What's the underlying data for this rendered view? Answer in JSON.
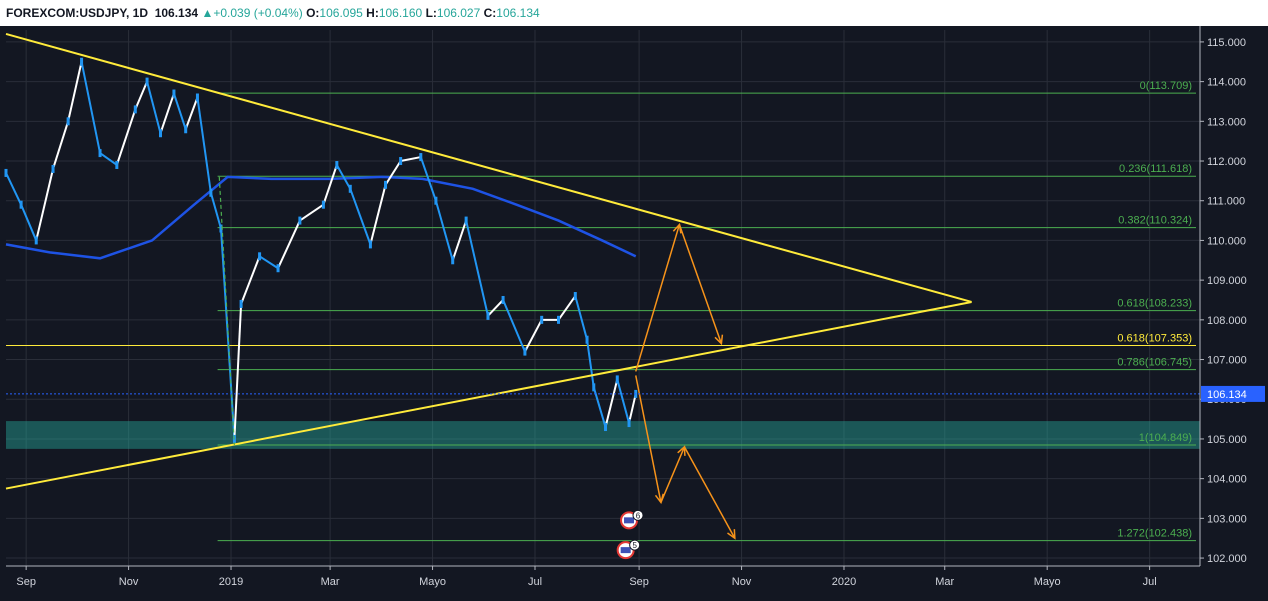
{
  "header": {
    "symbol": "FOREXCOM:USDJPY, 1D",
    "last": "106.134",
    "arrow": "▲",
    "change": "+0.039 (+0.04%)",
    "o_label": "O:",
    "o_value": "106.095",
    "h_label": "H:",
    "h_value": "106.160",
    "l_label": "L:",
    "l_value": "106.027",
    "c_label": "C:",
    "c_value": "106.134"
  },
  "chart_data": {
    "type": "line",
    "title": "",
    "xlabel": "",
    "ylabel": "",
    "ylim": [
      101.8,
      115.3
    ],
    "grid": true,
    "background": "#131722",
    "x_start": "2018-08-20",
    "x_end": "2020-07-31",
    "x_ticks": [
      {
        "label": "Sep",
        "date": "2018-09-01"
      },
      {
        "label": "Nov",
        "date": "2018-11-01"
      },
      {
        "label": "2019",
        "date": "2019-01-01"
      },
      {
        "label": "Mar",
        "date": "2019-03-01"
      },
      {
        "label": "Mayo",
        "date": "2019-05-01"
      },
      {
        "label": "Jul",
        "date": "2019-07-01"
      },
      {
        "label": "Sep",
        "date": "2019-09-01"
      },
      {
        "label": "Nov",
        "date": "2019-11-01"
      },
      {
        "label": "2020",
        "date": "2020-01-01"
      },
      {
        "label": "Mar",
        "date": "2020-03-01"
      },
      {
        "label": "Mayo",
        "date": "2020-05-01"
      },
      {
        "label": "Jul",
        "date": "2020-07-01"
      }
    ],
    "y_ticks": [
      "115.000",
      "114.000",
      "113.000",
      "112.000",
      "111.000",
      "110.000",
      "109.000",
      "108.000",
      "107.000",
      "106.000",
      "105.000",
      "104.000",
      "103.000",
      "102.000"
    ],
    "current_price": {
      "value": 106.134,
      "label": "106.134",
      "color": "#2962ff"
    },
    "price_series": {
      "name": "",
      "color_up": "#ffffff",
      "color_down": "#2196f3",
      "points": [
        {
          "date": "2018-08-20",
          "value": 111.7
        },
        {
          "date": "2018-08-29",
          "value": 110.9
        },
        {
          "date": "2018-09-07",
          "value": 110.0
        },
        {
          "date": "2018-09-17",
          "value": 111.8
        },
        {
          "date": "2018-09-26",
          "value": 113.0
        },
        {
          "date": "2018-10-04",
          "value": 114.5
        },
        {
          "date": "2018-10-15",
          "value": 112.2
        },
        {
          "date": "2018-10-25",
          "value": 111.9
        },
        {
          "date": "2018-11-05",
          "value": 113.3
        },
        {
          "date": "2018-11-12",
          "value": 114.0
        },
        {
          "date": "2018-11-20",
          "value": 112.7
        },
        {
          "date": "2018-11-28",
          "value": 113.7
        },
        {
          "date": "2018-12-05",
          "value": 112.8
        },
        {
          "date": "2018-12-12",
          "value": 113.6
        },
        {
          "date": "2018-12-20",
          "value": 111.2
        },
        {
          "date": "2018-12-26",
          "value": 110.3
        },
        {
          "date": "2019-01-03",
          "value": 105.0
        },
        {
          "date": "2019-01-07",
          "value": 108.4
        },
        {
          "date": "2019-01-18",
          "value": 109.6
        },
        {
          "date": "2019-01-29",
          "value": 109.3
        },
        {
          "date": "2019-02-11",
          "value": 110.5
        },
        {
          "date": "2019-02-25",
          "value": 110.9
        },
        {
          "date": "2019-03-05",
          "value": 111.9
        },
        {
          "date": "2019-03-13",
          "value": 111.3
        },
        {
          "date": "2019-03-25",
          "value": 109.9
        },
        {
          "date": "2019-04-03",
          "value": 111.4
        },
        {
          "date": "2019-04-12",
          "value": 112.0
        },
        {
          "date": "2019-04-24",
          "value": 112.1
        },
        {
          "date": "2019-05-03",
          "value": 111.0
        },
        {
          "date": "2019-05-13",
          "value": 109.5
        },
        {
          "date": "2019-05-21",
          "value": 110.5
        },
        {
          "date": "2019-06-03",
          "value": 108.1
        },
        {
          "date": "2019-06-12",
          "value": 108.5
        },
        {
          "date": "2019-06-25",
          "value": 107.2
        },
        {
          "date": "2019-07-05",
          "value": 108.0
        },
        {
          "date": "2019-07-15",
          "value": 108.0
        },
        {
          "date": "2019-07-25",
          "value": 108.6
        },
        {
          "date": "2019-08-01",
          "value": 107.5
        },
        {
          "date": "2019-08-05",
          "value": 106.3
        },
        {
          "date": "2019-08-12",
          "value": 105.3
        },
        {
          "date": "2019-08-19",
          "value": 106.5
        },
        {
          "date": "2019-08-26",
          "value": 105.4
        },
        {
          "date": "2019-08-30",
          "value": 106.134
        }
      ]
    },
    "moving_average": {
      "color": "#1e53e5",
      "points": [
        {
          "date": "2018-08-20",
          "value": 109.9
        },
        {
          "date": "2018-09-15",
          "value": 109.7
        },
        {
          "date": "2018-10-15",
          "value": 109.55
        },
        {
          "date": "2018-11-15",
          "value": 110.0
        },
        {
          "date": "2018-12-10",
          "value": 110.9
        },
        {
          "date": "2018-12-30",
          "value": 111.6
        },
        {
          "date": "2019-01-25",
          "value": 111.55
        },
        {
          "date": "2019-03-01",
          "value": 111.55
        },
        {
          "date": "2019-04-01",
          "value": 111.6
        },
        {
          "date": "2019-04-25",
          "value": 111.55
        },
        {
          "date": "2019-05-25",
          "value": 111.3
        },
        {
          "date": "2019-06-20",
          "value": 110.9
        },
        {
          "date": "2019-07-15",
          "value": 110.5
        },
        {
          "date": "2019-08-10",
          "value": 110.0
        },
        {
          "date": "2019-08-30",
          "value": 109.6
        }
      ]
    },
    "trendlines": [
      {
        "color": "#ffeb3b",
        "from": {
          "date": "2018-08-20",
          "value": 115.2
        },
        "to": {
          "date": "2020-03-17",
          "value": 108.45
        }
      },
      {
        "color": "#ffeb3b",
        "from": {
          "date": "2018-08-20",
          "value": 103.75
        },
        "to": {
          "date": "2020-03-17",
          "value": 108.45
        }
      },
      {
        "color": "#4caf50",
        "dashed": true,
        "from": {
          "date": "2018-12-25",
          "value": 111.6
        },
        "to": {
          "date": "2019-01-03",
          "value": 104.85
        }
      }
    ],
    "fib_levels": [
      {
        "label": "0(113.709)",
        "value": 113.709,
        "color": "#4caf50"
      },
      {
        "label": "0.236(111.618)",
        "value": 111.618,
        "color": "#4caf50"
      },
      {
        "label": "0.382(110.324)",
        "value": 110.324,
        "color": "#4caf50"
      },
      {
        "label": "0.618(108.233)",
        "value": 108.233,
        "color": "#4caf50"
      },
      {
        "label": "0.618(107.353)",
        "value": 107.353,
        "color": "#ffeb3b"
      },
      {
        "label": "0.786(106.745)",
        "value": 106.745,
        "color": "#4caf50"
      },
      {
        "label": "1(104.849)",
        "value": 104.849,
        "color": "#4caf50"
      },
      {
        "label": "1.272(102.438)",
        "value": 102.438,
        "color": "#4caf50"
      }
    ],
    "fib_start_date": "2018-12-24",
    "support_zone": {
      "from_value": 104.75,
      "to_value": 105.45,
      "color": "#26a69a"
    },
    "projection_paths": [
      {
        "color": "#f7931a",
        "points": [
          {
            "date": "2019-08-30",
            "value": 106.7
          },
          {
            "date": "2019-09-25",
            "value": 110.4
          },
          {
            "date": "2019-10-20",
            "value": 107.4
          }
        ]
      },
      {
        "color": "#f7931a",
        "points": [
          {
            "date": "2019-08-30",
            "value": 106.6
          },
          {
            "date": "2019-09-14",
            "value": 103.4
          },
          {
            "date": "2019-09-28",
            "value": 104.8
          },
          {
            "date": "2019-10-28",
            "value": 102.5
          }
        ]
      }
    ],
    "event_markers": [
      {
        "date": "2019-08-26",
        "value": 102.95,
        "count": "6"
      },
      {
        "date": "2019-08-24",
        "value": 102.2,
        "count": "5"
      }
    ]
  }
}
